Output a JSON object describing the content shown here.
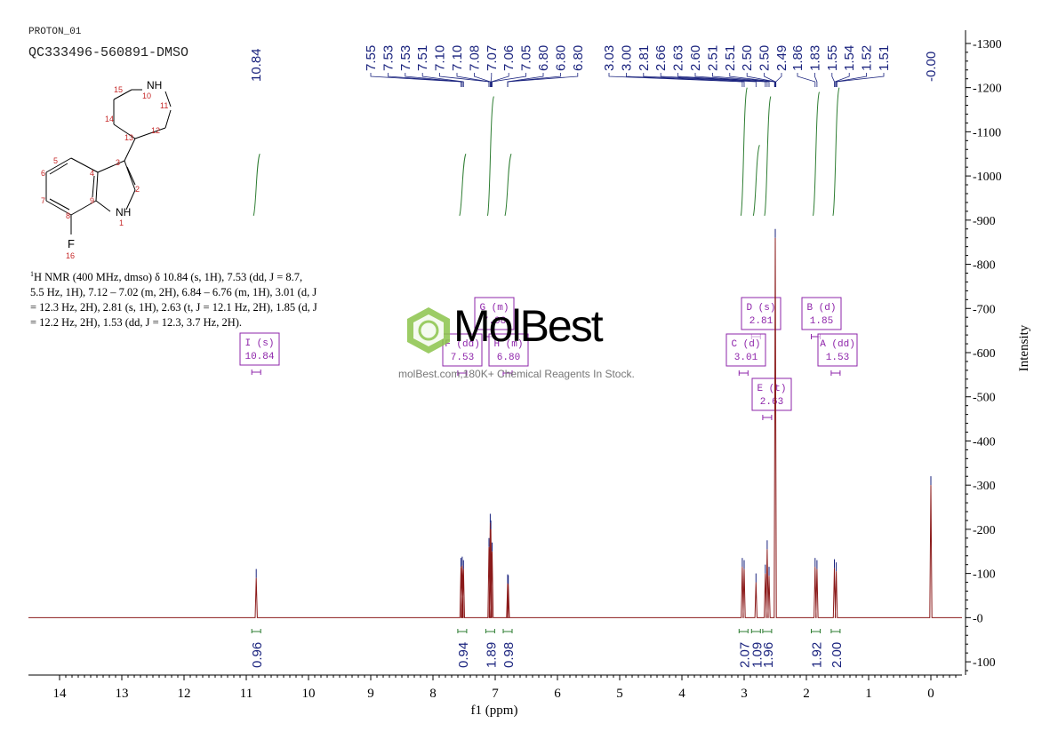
{
  "header": {
    "line1": "PROTON_01",
    "line2": "QC333496-560891-DMSO"
  },
  "description": {
    "line1": "H NMR (400 MHz, dmso) δ 10.84 (s, 1H), 7.53 (dd, J = 8.7,",
    "line2": "5.5 Hz, 1H), 7.12 – 7.02 (m, 2H), 6.84 – 6.76 (m, 1H), 3.01 (d, J",
    "line3": "= 12.3 Hz, 2H), 2.81 (s, 1H), 2.63 (t, J = 12.1 Hz, 2H), 1.85 (d, J",
    "line4": "= 12.2 Hz, 2H), 1.53 (dd, J = 12.3, 3.7 Hz, 2H).",
    "sup": "1"
  },
  "watermark": {
    "brand": "MolBest",
    "tagline": "molBest.com,180K+ Chemical Reagents In Stock."
  },
  "molecule": {
    "atoms": [
      "NH",
      "10",
      "11",
      "12",
      "13",
      "14",
      "15",
      "3",
      "2",
      "NH",
      "1",
      "9",
      "8",
      "F",
      "16",
      "7",
      "6",
      "5",
      "4"
    ]
  },
  "colors": {
    "spectrum": "#8b1a1a",
    "integral": "#2e7d32",
    "peak_label": "#1a237e",
    "multiplet": "#8e24aa",
    "axis": "#000000"
  },
  "chart_data": {
    "type": "line",
    "xlabel": "f1 (ppm)",
    "ylabel": "Intensity",
    "xlim": [
      14.5,
      -0.5
    ],
    "ylim": [
      -130,
      1330
    ],
    "x_ticks": [
      "14",
      "13",
      "12",
      "11",
      "10",
      "9",
      "8",
      "7",
      "6",
      "5",
      "4",
      "3",
      "2",
      "1",
      "0"
    ],
    "y_ticks": [
      "1300",
      "1200",
      "1100",
      "1000",
      "900",
      "800",
      "700",
      "600",
      "500",
      "400",
      "300",
      "200",
      "100",
      "0",
      "-100"
    ],
    "peaks": [
      {
        "ppm": 10.84,
        "height": 90
      },
      {
        "ppm": 7.55,
        "height": 115
      },
      {
        "ppm": 7.53,
        "height": 118
      },
      {
        "ppm": 7.51,
        "height": 110
      },
      {
        "ppm": 7.1,
        "height": 160
      },
      {
        "ppm": 7.08,
        "height": 215
      },
      {
        "ppm": 7.07,
        "height": 200
      },
      {
        "ppm": 7.05,
        "height": 150
      },
      {
        "ppm": 6.8,
        "height": 78
      },
      {
        "ppm": 6.79,
        "height": 76
      },
      {
        "ppm": 3.03,
        "height": 115
      },
      {
        "ppm": 3.0,
        "height": 110
      },
      {
        "ppm": 2.81,
        "height": 80
      },
      {
        "ppm": 2.66,
        "height": 100
      },
      {
        "ppm": 2.63,
        "height": 155
      },
      {
        "ppm": 2.6,
        "height": 95
      },
      {
        "ppm": 2.5,
        "height": 860
      },
      {
        "ppm": 1.86,
        "height": 115
      },
      {
        "ppm": 1.83,
        "height": 110
      },
      {
        "ppm": 1.55,
        "height": 112
      },
      {
        "ppm": 1.52,
        "height": 105
      },
      {
        "ppm": 0.0,
        "height": 300
      }
    ],
    "peak_labels": [
      "7.55",
      "7.53",
      "7.53",
      "7.51",
      "7.10",
      "7.10",
      "7.08",
      "7.07",
      "7.06",
      "7.05",
      "6.80",
      "6.80",
      "6.80",
      "3.03",
      "3.00",
      "2.81",
      "2.66",
      "2.63",
      "2.60",
      "2.51",
      "2.51",
      "2.50",
      "2.50",
      "2.49",
      "1.86",
      "1.83",
      "1.55",
      "1.54",
      "1.52",
      "1.51"
    ],
    "single_labels": [
      {
        "text": "10.84",
        "ppm": 10.84
      },
      {
        "text": "-0.00",
        "ppm": 0.0
      }
    ],
    "integrals": [
      {
        "value": "0.96",
        "ppm": 10.84
      },
      {
        "value": "0.94",
        "ppm": 7.53
      },
      {
        "value": "1.89",
        "ppm": 7.08
      },
      {
        "value": "0.98",
        "ppm": 6.8
      },
      {
        "value": "2.07",
        "ppm": 3.01
      },
      {
        "value": "1.09",
        "ppm": 2.81
      },
      {
        "value": "1.96",
        "ppm": 2.63
      },
      {
        "value": "1.92",
        "ppm": 1.85
      },
      {
        "value": "2.00",
        "ppm": 1.53
      }
    ],
    "multiplets": [
      {
        "letter": "I",
        "type": "s",
        "shift": "10.84"
      },
      {
        "letter": "G",
        "type": "m",
        "shift": "7.08"
      },
      {
        "letter": "F",
        "type": "dd",
        "shift": "7.53"
      },
      {
        "letter": "H",
        "type": "m",
        "shift": "6.80"
      },
      {
        "letter": "D",
        "type": "s",
        "shift": "2.81"
      },
      {
        "letter": "B",
        "type": "d",
        "shift": "1.85"
      },
      {
        "letter": "C",
        "type": "d",
        "shift": "3.01"
      },
      {
        "letter": "A",
        "type": "dd",
        "shift": "1.53"
      },
      {
        "letter": "E",
        "type": "t",
        "shift": "2.63"
      }
    ]
  }
}
